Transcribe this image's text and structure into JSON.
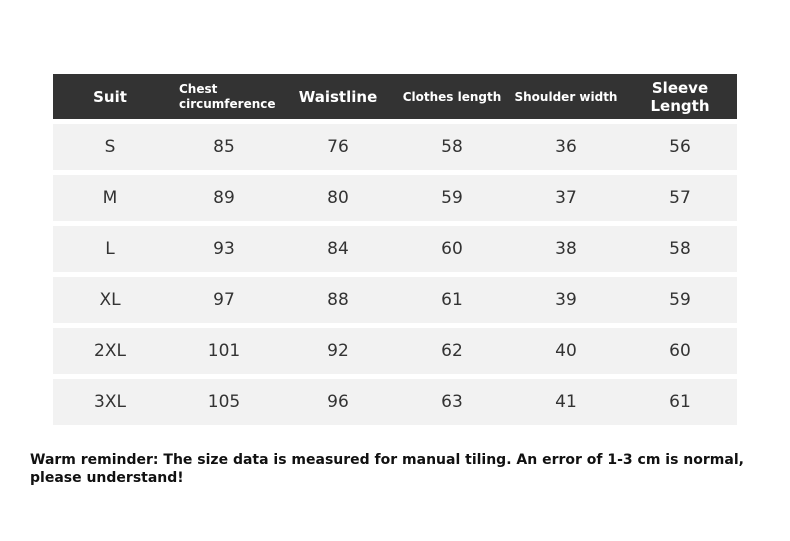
{
  "headers": [
    "Suit",
    "Chest circumference",
    "Waistline",
    "Clothes length",
    "Shoulder width",
    "Sleeve Length"
  ],
  "rows": [
    [
      "S",
      "85",
      "76",
      "58",
      "36",
      "56"
    ],
    [
      "M",
      "89",
      "80",
      "59",
      "37",
      "57"
    ],
    [
      "L",
      "93",
      "84",
      "60",
      "38",
      "58"
    ],
    [
      "XL",
      "97",
      "88",
      "61",
      "39",
      "59"
    ],
    [
      "2XL",
      "101",
      "92",
      "62",
      "40",
      "60"
    ],
    [
      "3XL",
      "105",
      "96",
      "63",
      "41",
      "61"
    ]
  ],
  "note": "Warm reminder: The size data is measured for manual tiling. An error of 1-3 cm is normal, please understand!",
  "colors": {
    "header_bg": "#333333",
    "row_bg": "#f2f2f2"
  }
}
